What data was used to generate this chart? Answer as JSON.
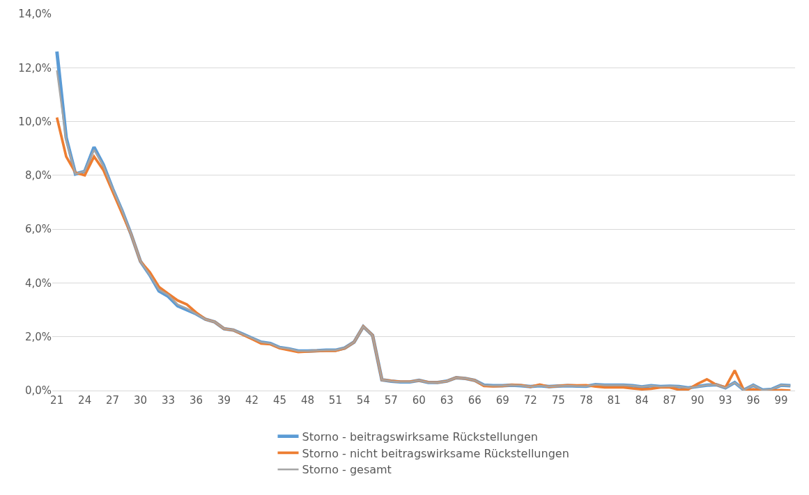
{
  "chart_data": {
    "type": "line",
    "categories": [
      "21",
      null,
      null,
      "24",
      null,
      null,
      "27",
      null,
      null,
      "30",
      null,
      null,
      "33",
      null,
      null,
      "36",
      null,
      null,
      "39",
      null,
      null,
      "42",
      null,
      null,
      "45",
      null,
      null,
      "48",
      null,
      null,
      "51",
      null,
      null,
      "54",
      null,
      null,
      "57",
      null,
      null,
      "60",
      null,
      null,
      "63",
      null,
      null,
      "66",
      null,
      null,
      "69",
      null,
      null,
      "72",
      null,
      null,
      "75",
      null,
      null,
      "78",
      null,
      null,
      "81",
      null,
      null,
      "84",
      null,
      null,
      "87",
      null,
      null,
      "90",
      null,
      null,
      "93",
      null,
      null,
      "96",
      null,
      null,
      "99",
      null
    ],
    "series": [
      {
        "name": "Storno - beitragswirksame Rückstellungen",
        "color": "#5b9bd5",
        "values": [
          12.6,
          9.4,
          8.05,
          8.15,
          9.05,
          8.4,
          7.5,
          6.7,
          5.8,
          4.8,
          4.3,
          3.7,
          3.5,
          3.15,
          3.0,
          2.85,
          2.65,
          2.55,
          2.3,
          2.25,
          2.1,
          1.95,
          1.8,
          1.75,
          1.6,
          1.55,
          1.47,
          1.47,
          1.48,
          1.5,
          1.5,
          1.58,
          1.8,
          2.38,
          2.05,
          0.4,
          0.35,
          0.32,
          0.32,
          0.38,
          0.3,
          0.3,
          0.35,
          0.48,
          0.45,
          0.38,
          0.2,
          0.18,
          0.18,
          0.2,
          0.18,
          0.15,
          0.18,
          0.15,
          0.17,
          0.18,
          0.17,
          0.16,
          0.22,
          0.2,
          0.2,
          0.2,
          0.18,
          0.14,
          0.18,
          0.15,
          0.16,
          0.15,
          0.1,
          0.15,
          0.2,
          0.22,
          0.1,
          0.3,
          0.02,
          0.2,
          0.02,
          0.05,
          0.2,
          0.18
        ]
      },
      {
        "name": "Storno - nicht beitragswirksame Rückstellungen",
        "color": "#ed7d31",
        "values": [
          10.15,
          8.7,
          8.1,
          8.0,
          8.7,
          8.2,
          7.4,
          6.6,
          5.8,
          4.8,
          4.4,
          3.85,
          3.6,
          3.35,
          3.2,
          2.9,
          2.65,
          2.55,
          2.3,
          2.25,
          2.08,
          1.92,
          1.75,
          1.72,
          1.57,
          1.5,
          1.43,
          1.45,
          1.47,
          1.48,
          1.48,
          1.57,
          1.8,
          2.38,
          2.05,
          0.4,
          0.36,
          0.33,
          0.33,
          0.38,
          0.31,
          0.3,
          0.35,
          0.48,
          0.45,
          0.38,
          0.17,
          0.16,
          0.17,
          0.21,
          0.2,
          0.14,
          0.22,
          0.14,
          0.17,
          0.2,
          0.19,
          0.2,
          0.15,
          0.12,
          0.12,
          0.12,
          0.08,
          0.05,
          0.07,
          0.12,
          0.12,
          0.03,
          0.05,
          0.25,
          0.42,
          0.22,
          0.12,
          0.75,
          0.0,
          0.05,
          0.0,
          0.0,
          0.02,
          0.0
        ]
      },
      {
        "name": "Storno - gesamt",
        "color": "#a5a5a5",
        "values": [
          11.9,
          9.3,
          8.05,
          8.15,
          8.95,
          8.35,
          7.5,
          6.7,
          5.8,
          4.8,
          4.3,
          3.75,
          3.55,
          3.2,
          3.05,
          2.85,
          2.65,
          2.55,
          2.3,
          2.25,
          2.1,
          1.95,
          1.8,
          1.75,
          1.6,
          1.55,
          1.47,
          1.47,
          1.48,
          1.5,
          1.5,
          1.58,
          1.8,
          2.38,
          2.05,
          0.4,
          0.35,
          0.32,
          0.32,
          0.38,
          0.3,
          0.3,
          0.35,
          0.48,
          0.45,
          0.38,
          0.2,
          0.18,
          0.18,
          0.2,
          0.18,
          0.15,
          0.18,
          0.15,
          0.17,
          0.18,
          0.17,
          0.16,
          0.22,
          0.2,
          0.2,
          0.2,
          0.18,
          0.14,
          0.18,
          0.15,
          0.16,
          0.15,
          0.1,
          0.15,
          0.2,
          0.22,
          0.1,
          0.3,
          0.02,
          0.2,
          0.02,
          0.05,
          0.2,
          0.18
        ]
      }
    ],
    "ylim": [
      0,
      14
    ],
    "yticks": [
      {
        "value": 0,
        "label": "0,0%"
      },
      {
        "value": 2,
        "label": "2,0%"
      },
      {
        "value": 4,
        "label": "4,0%"
      },
      {
        "value": 6,
        "label": "6,0%"
      },
      {
        "value": 8,
        "label": "8,0%"
      },
      {
        "value": 10,
        "label": "10,0%"
      },
      {
        "value": 12,
        "label": "12,0%"
      },
      {
        "value": 14,
        "label": "14,0%"
      }
    ],
    "grid": "y",
    "legend": "bottom",
    "marker": "none",
    "line_style": "solid"
  }
}
